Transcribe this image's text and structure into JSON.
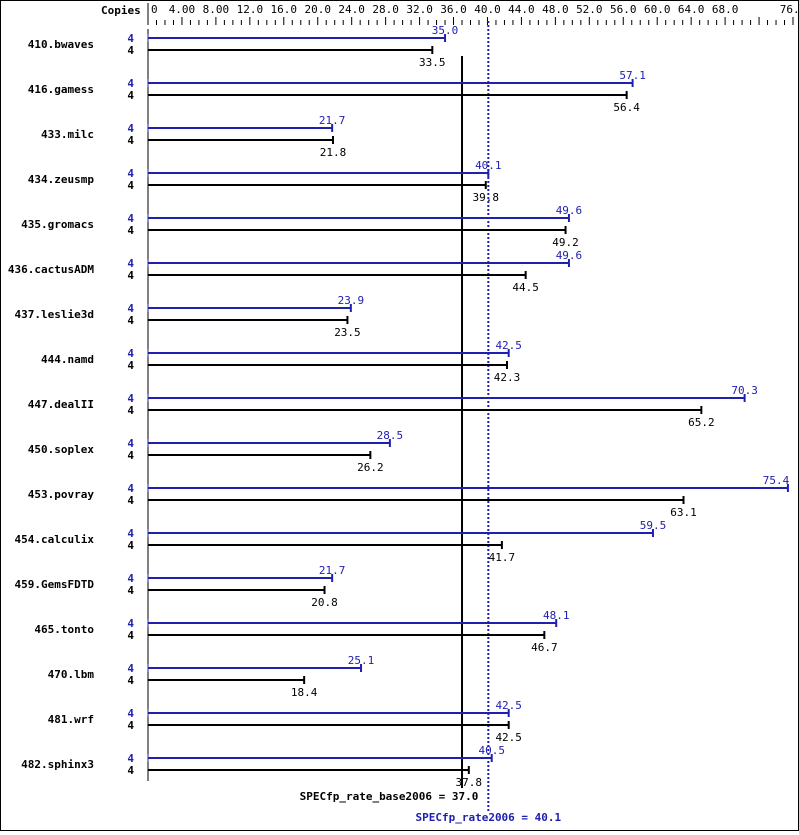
{
  "chart_data": {
    "type": "bar",
    "orientation": "horizontal",
    "copies_label": "Copies",
    "xlim": [
      0,
      76
    ],
    "tick_labels": [
      "0",
      "4.00",
      "8.00",
      "12.0",
      "16.0",
      "20.0",
      "24.0",
      "28.0",
      "32.0",
      "36.0",
      "40.0",
      "44.0",
      "48.0",
      "52.0",
      "56.0",
      "60.0",
      "64.0",
      "68.0",
      "76.0"
    ],
    "tick_values": [
      0,
      4,
      8,
      12,
      16,
      20,
      24,
      28,
      32,
      36,
      40,
      44,
      48,
      52,
      56,
      60,
      64,
      68,
      76
    ],
    "categories": [
      "410.bwaves",
      "416.gamess",
      "433.milc",
      "434.zeusmp",
      "435.gromacs",
      "436.cactusADM",
      "437.leslie3d",
      "444.namd",
      "447.dealII",
      "450.soplex",
      "453.povray",
      "454.calculix",
      "459.GemsFDTD",
      "465.tonto",
      "470.lbm",
      "481.wrf",
      "482.sphinx3"
    ],
    "series": [
      {
        "name": "SPECfp_rate2006",
        "color": "#2020b0",
        "copies": [
          4,
          4,
          4,
          4,
          4,
          4,
          4,
          4,
          4,
          4,
          4,
          4,
          4,
          4,
          4,
          4,
          4
        ],
        "values": [
          35.0,
          57.1,
          21.7,
          40.1,
          49.6,
          49.6,
          23.9,
          42.5,
          70.3,
          28.5,
          75.4,
          59.5,
          21.7,
          48.1,
          25.1,
          42.5,
          40.5
        ],
        "labels": [
          "35.0",
          "57.1",
          "21.7",
          "40.1",
          "49.6",
          "49.6",
          "23.9",
          "42.5",
          "70.3",
          "28.5",
          "75.4",
          "59.5",
          "21.7",
          "48.1",
          "25.1",
          "42.5",
          "40.5"
        ]
      },
      {
        "name": "SPECfp_rate_base2006",
        "color": "#000000",
        "copies": [
          4,
          4,
          4,
          4,
          4,
          4,
          4,
          4,
          4,
          4,
          4,
          4,
          4,
          4,
          4,
          4,
          4
        ],
        "values": [
          33.5,
          56.4,
          21.8,
          39.8,
          49.2,
          44.5,
          23.5,
          42.3,
          65.2,
          26.2,
          63.1,
          41.7,
          20.8,
          46.7,
          18.4,
          42.5,
          37.8
        ],
        "labels": [
          "33.5",
          "56.4",
          "21.8",
          "39.8",
          "49.2",
          "44.5",
          "23.5",
          "42.3",
          "65.2",
          "26.2",
          "63.1",
          "41.7",
          "20.8",
          "46.7",
          "18.4",
          "42.5",
          "37.8"
        ]
      }
    ],
    "reference_lines": [
      {
        "label": "SPECfp_rate_base2006 = 37.0",
        "value": 37.0,
        "color": "#000000",
        "style": "solid"
      },
      {
        "label": "SPECfp_rate2006 = 40.1",
        "value": 40.1,
        "color": "#2020b0",
        "style": "dotted"
      }
    ]
  }
}
